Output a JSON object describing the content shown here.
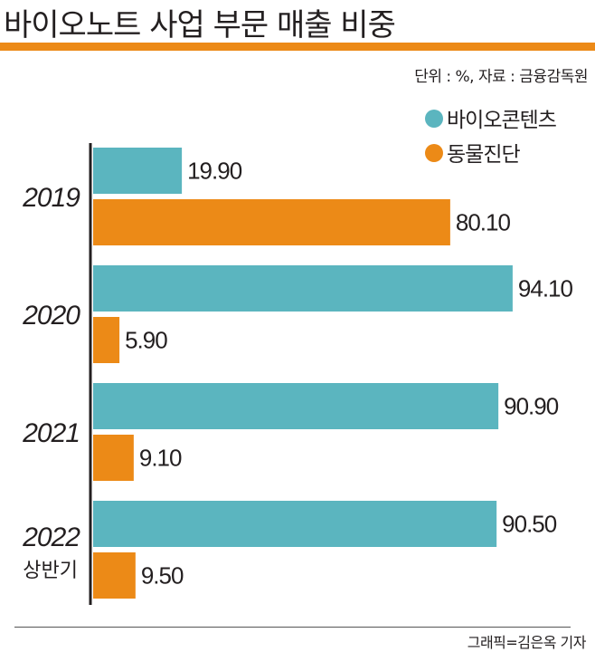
{
  "chart_data": {
    "type": "bar",
    "orientation": "horizontal",
    "title": "바이오노트 사업 부문 매출 비중",
    "unit_note": "단위 : %, 자료 : 금융감독원",
    "credit": "그래픽=김은옥 기자",
    "categories": [
      "2019",
      "2020",
      "2021",
      "2022"
    ],
    "category_sublabels": [
      "",
      "",
      "",
      "상반기"
    ],
    "series": [
      {
        "name": "바이오콘텐츠",
        "color": "#5bb5bf",
        "values": [
          19.9,
          94.1,
          90.9,
          90.5
        ],
        "labels": [
          "19.90",
          "94.10",
          "90.90",
          "90.50"
        ]
      },
      {
        "name": "동물진단",
        "color": "#ec8a17",
        "values": [
          80.1,
          5.9,
          9.1,
          9.5
        ],
        "labels": [
          "80.10",
          "5.90",
          "9.10",
          "9.50"
        ]
      }
    ],
    "legend": "top-right",
    "grid": false,
    "xlim": [
      0,
      100
    ]
  }
}
